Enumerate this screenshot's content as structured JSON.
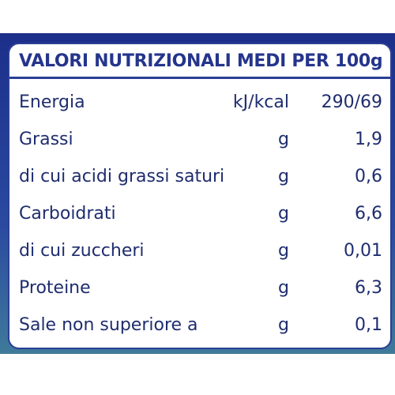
{
  "header": {
    "title": "VALORI NUTRIZIONALI MEDI PER 100g"
  },
  "table": {
    "rows": [
      [
        "Energia",
        "kJ/kcal",
        "290/69"
      ],
      [
        "Grassi",
        "g",
        "1,9"
      ],
      [
        "di cui acidi grassi saturi",
        "g",
        "0,6"
      ],
      [
        "Carboidrati",
        "g",
        "6,6"
      ],
      [
        "di cui zuccheri",
        "g",
        "0,01"
      ],
      [
        "Proteine",
        "g",
        "6,3"
      ],
      [
        "Sale non superiore a",
        "g",
        "0,1"
      ]
    ]
  }
}
